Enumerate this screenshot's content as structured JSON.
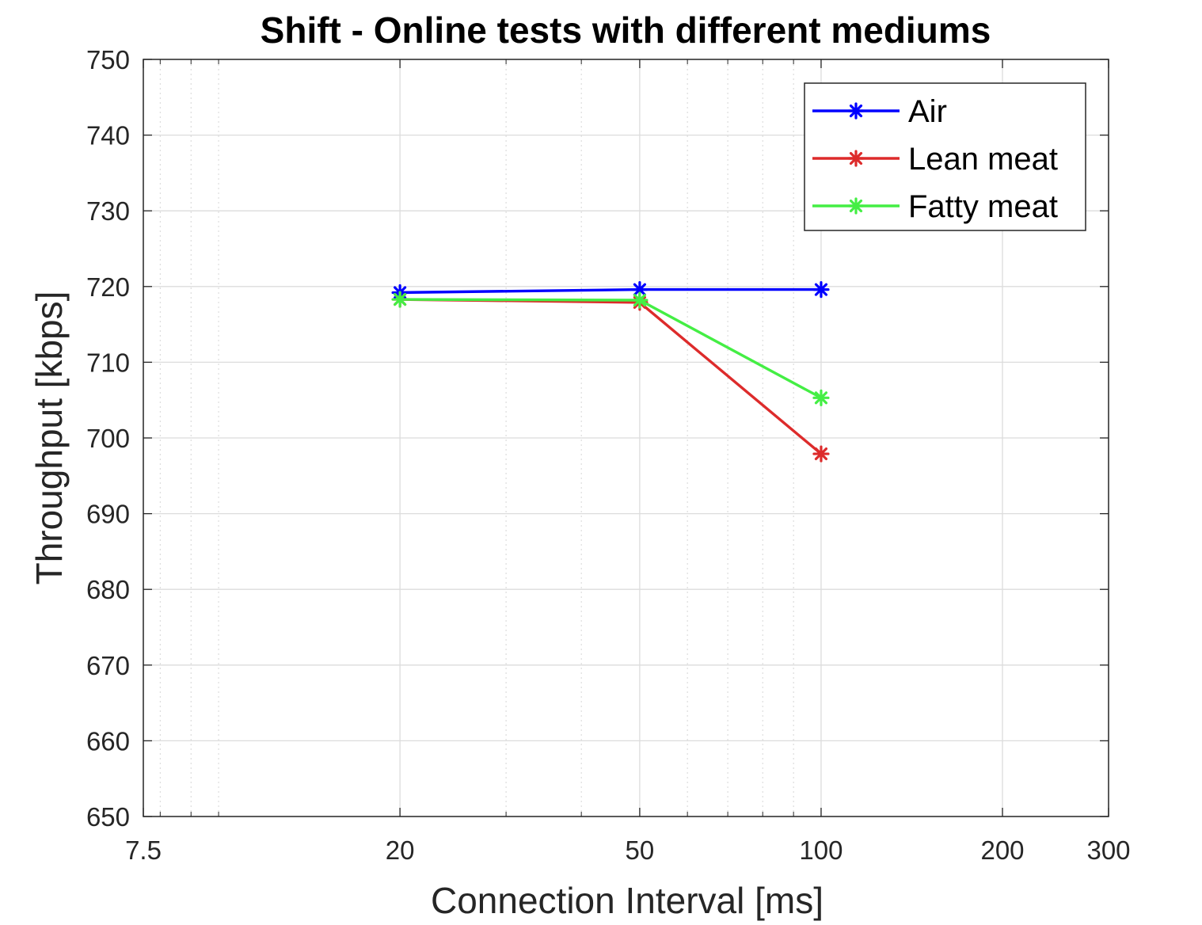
{
  "chart_data": {
    "type": "line",
    "title": "Shift - Online tests with different mediums",
    "xlabel": "Connection Interval [ms]",
    "ylabel": "Throughput [kbps]",
    "xscale": "log",
    "xlim": [
      7.5,
      300
    ],
    "ylim": [
      650,
      750
    ],
    "xticks": [
      7.5,
      20,
      50,
      100,
      200,
      300
    ],
    "xtick_labels": [
      "7.5",
      "20",
      "50",
      "100",
      "200",
      "300"
    ],
    "yticks": [
      650,
      660,
      670,
      680,
      690,
      700,
      710,
      720,
      730,
      740,
      750
    ],
    "ytick_labels": [
      "650",
      "660",
      "670",
      "680",
      "690",
      "700",
      "710",
      "720",
      "730",
      "740",
      "750"
    ],
    "grid": true,
    "minor_grid": true,
    "legend_position": "top-right",
    "x": [
      20,
      50,
      100
    ],
    "series": [
      {
        "name": "Air",
        "color": "#0000ff",
        "marker": "asterisk",
        "values": [
          719.2,
          719.6,
          719.6
        ]
      },
      {
        "name": "Lean meat",
        "color": "#dd2b2b",
        "marker": "asterisk",
        "values": [
          718.3,
          717.9,
          697.9
        ]
      },
      {
        "name": "Fatty meat",
        "color": "#44ee44",
        "marker": "asterisk",
        "values": [
          718.3,
          718.2,
          705.3
        ]
      }
    ]
  }
}
